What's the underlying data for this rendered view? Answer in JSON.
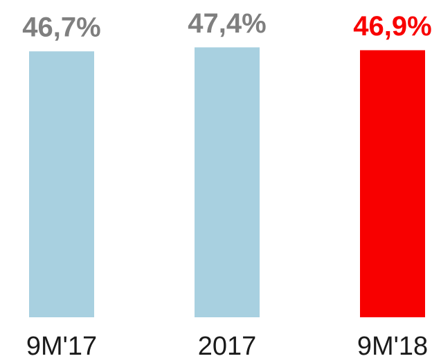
{
  "chart_data": {
    "type": "bar",
    "categories": [
      "9M'17",
      "2017",
      "9M'18"
    ],
    "values": [
      46.7,
      47.4,
      46.9
    ],
    "value_labels": [
      "46,7%",
      "47,4%",
      "46,9%"
    ],
    "colors": [
      "#a8d0e0",
      "#a8d0e0",
      "#f80000"
    ],
    "label_colors": [
      "#7f7f7f",
      "#7f7f7f",
      "#f80000"
    ],
    "ylim": [
      0,
      50
    ]
  }
}
